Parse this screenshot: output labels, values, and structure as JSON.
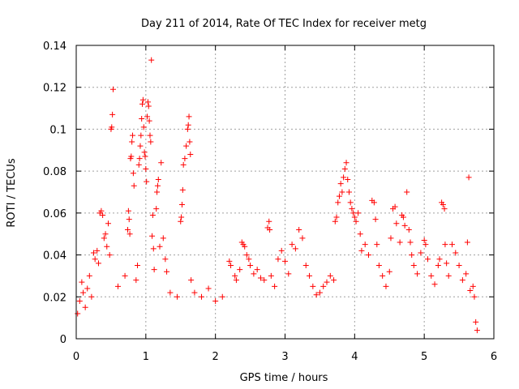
{
  "chart_data": {
    "type": "scatter",
    "title": "Day 211 of 2014, Rate Of TEC Index for receiver metg",
    "xlabel": "GPS time / hours",
    "ylabel": "ROTI / TECUs",
    "xlim": [
      0,
      6
    ],
    "ylim": [
      0,
      0.14
    ],
    "xticks": [
      0,
      1,
      2,
      3,
      4,
      5,
      6
    ],
    "xtick_labels": [
      "0",
      "1",
      "2",
      "3",
      "4",
      "5",
      "6"
    ],
    "yticks": [
      0,
      0.02,
      0.04,
      0.06,
      0.08,
      0.1,
      0.12,
      0.14
    ],
    "ytick_labels": [
      "0",
      "0.02",
      "0.04",
      "0.06",
      "0.08",
      "0.1",
      "0.12",
      "0.14"
    ],
    "grid": true,
    "marker": "plus",
    "color": "#ff0000",
    "series": [
      {
        "name": "ROTI",
        "points": [
          [
            0.02,
            0.012
          ],
          [
            0.05,
            0.018
          ],
          [
            0.08,
            0.027
          ],
          [
            0.1,
            0.022
          ],
          [
            0.13,
            0.015
          ],
          [
            0.16,
            0.024
          ],
          [
            0.19,
            0.03
          ],
          [
            0.22,
            0.02
          ],
          [
            0.25,
            0.041
          ],
          [
            0.27,
            0.038
          ],
          [
            0.3,
            0.042
          ],
          [
            0.32,
            0.036
          ],
          [
            0.34,
            0.06
          ],
          [
            0.36,
            0.061
          ],
          [
            0.38,
            0.059
          ],
          [
            0.4,
            0.048
          ],
          [
            0.42,
            0.05
          ],
          [
            0.44,
            0.044
          ],
          [
            0.46,
            0.055
          ],
          [
            0.48,
            0.04
          ],
          [
            0.5,
            0.1
          ],
          [
            0.51,
            0.101
          ],
          [
            0.52,
            0.107
          ],
          [
            0.53,
            0.119
          ],
          [
            0.6,
            0.025
          ],
          [
            0.7,
            0.03
          ],
          [
            0.74,
            0.052
          ],
          [
            0.75,
            0.061
          ],
          [
            0.76,
            0.057
          ],
          [
            0.77,
            0.05
          ],
          [
            0.78,
            0.086
          ],
          [
            0.79,
            0.087
          ],
          [
            0.8,
            0.094
          ],
          [
            0.81,
            0.097
          ],
          [
            0.82,
            0.079
          ],
          [
            0.83,
            0.073
          ],
          [
            0.86,
            0.028
          ],
          [
            0.88,
            0.035
          ],
          [
            0.9,
            0.083
          ],
          [
            0.91,
            0.086
          ],
          [
            0.92,
            0.092
          ],
          [
            0.93,
            0.097
          ],
          [
            0.94,
            0.105
          ],
          [
            0.95,
            0.112
          ],
          [
            0.96,
            0.114
          ],
          [
            0.97,
            0.101
          ],
          [
            0.98,
            0.089
          ],
          [
            0.99,
            0.087
          ],
          [
            1.0,
            0.081
          ],
          [
            1.01,
            0.075
          ],
          [
            1.02,
            0.106
          ],
          [
            1.03,
            0.113
          ],
          [
            1.04,
            0.111
          ],
          [
            1.05,
            0.104
          ],
          [
            1.06,
            0.097
          ],
          [
            1.07,
            0.094
          ],
          [
            1.08,
            0.133
          ],
          [
            1.09,
            0.049
          ],
          [
            1.1,
            0.059
          ],
          [
            1.11,
            0.043
          ],
          [
            1.12,
            0.033
          ],
          [
            1.15,
            0.062
          ],
          [
            1.16,
            0.07
          ],
          [
            1.17,
            0.073
          ],
          [
            1.18,
            0.076
          ],
          [
            1.2,
            0.044
          ],
          [
            1.22,
            0.084
          ],
          [
            1.25,
            0.048
          ],
          [
            1.28,
            0.038
          ],
          [
            1.3,
            0.032
          ],
          [
            1.35,
            0.022
          ],
          [
            1.45,
            0.02
          ],
          [
            1.5,
            0.056
          ],
          [
            1.51,
            0.058
          ],
          [
            1.52,
            0.064
          ],
          [
            1.53,
            0.071
          ],
          [
            1.54,
            0.083
          ],
          [
            1.56,
            0.086
          ],
          [
            1.58,
            0.092
          ],
          [
            1.6,
            0.1
          ],
          [
            1.61,
            0.102
          ],
          [
            1.62,
            0.106
          ],
          [
            1.63,
            0.094
          ],
          [
            1.64,
            0.088
          ],
          [
            1.65,
            0.028
          ],
          [
            1.7,
            0.022
          ],
          [
            1.8,
            0.02
          ],
          [
            1.9,
            0.024
          ],
          [
            2.0,
            0.018
          ],
          [
            2.1,
            0.02
          ],
          [
            2.2,
            0.037
          ],
          [
            2.22,
            0.035
          ],
          [
            2.28,
            0.03
          ],
          [
            2.3,
            0.028
          ],
          [
            2.35,
            0.033
          ],
          [
            2.38,
            0.046
          ],
          [
            2.4,
            0.045
          ],
          [
            2.42,
            0.044
          ],
          [
            2.45,
            0.04
          ],
          [
            2.48,
            0.038
          ],
          [
            2.5,
            0.035
          ],
          [
            2.55,
            0.031
          ],
          [
            2.6,
            0.033
          ],
          [
            2.65,
            0.029
          ],
          [
            2.7,
            0.028
          ],
          [
            2.75,
            0.053
          ],
          [
            2.77,
            0.056
          ],
          [
            2.78,
            0.052
          ],
          [
            2.8,
            0.03
          ],
          [
            2.85,
            0.025
          ],
          [
            2.9,
            0.038
          ],
          [
            2.95,
            0.042
          ],
          [
            3.0,
            0.037
          ],
          [
            3.05,
            0.031
          ],
          [
            3.1,
            0.045
          ],
          [
            3.15,
            0.043
          ],
          [
            3.2,
            0.052
          ],
          [
            3.25,
            0.048
          ],
          [
            3.3,
            0.035
          ],
          [
            3.35,
            0.03
          ],
          [
            3.4,
            0.025
          ],
          [
            3.45,
            0.021
          ],
          [
            3.5,
            0.022
          ],
          [
            3.55,
            0.025
          ],
          [
            3.6,
            0.027
          ],
          [
            3.65,
            0.03
          ],
          [
            3.7,
            0.028
          ],
          [
            3.72,
            0.056
          ],
          [
            3.74,
            0.058
          ],
          [
            3.76,
            0.065
          ],
          [
            3.78,
            0.068
          ],
          [
            3.8,
            0.074
          ],
          [
            3.82,
            0.07
          ],
          [
            3.84,
            0.077
          ],
          [
            3.86,
            0.081
          ],
          [
            3.88,
            0.084
          ],
          [
            3.9,
            0.076
          ],
          [
            3.92,
            0.07
          ],
          [
            3.94,
            0.065
          ],
          [
            3.96,
            0.062
          ],
          [
            3.98,
            0.06
          ],
          [
            4.0,
            0.058
          ],
          [
            4.02,
            0.056
          ],
          [
            4.05,
            0.06
          ],
          [
            4.08,
            0.05
          ],
          [
            4.1,
            0.042
          ],
          [
            4.15,
            0.045
          ],
          [
            4.2,
            0.04
          ],
          [
            4.25,
            0.066
          ],
          [
            4.28,
            0.065
          ],
          [
            4.3,
            0.057
          ],
          [
            4.32,
            0.045
          ],
          [
            4.35,
            0.035
          ],
          [
            4.4,
            0.03
          ],
          [
            4.45,
            0.025
          ],
          [
            4.5,
            0.032
          ],
          [
            4.52,
            0.048
          ],
          [
            4.55,
            0.062
          ],
          [
            4.58,
            0.063
          ],
          [
            4.6,
            0.055
          ],
          [
            4.65,
            0.046
          ],
          [
            4.68,
            0.059
          ],
          [
            4.7,
            0.058
          ],
          [
            4.72,
            0.054
          ],
          [
            4.75,
            0.07
          ],
          [
            4.78,
            0.052
          ],
          [
            4.8,
            0.046
          ],
          [
            4.82,
            0.04
          ],
          [
            4.85,
            0.035
          ],
          [
            4.9,
            0.031
          ],
          [
            4.95,
            0.041
          ],
          [
            5.0,
            0.047
          ],
          [
            5.02,
            0.045
          ],
          [
            5.05,
            0.038
          ],
          [
            5.1,
            0.03
          ],
          [
            5.15,
            0.026
          ],
          [
            5.2,
            0.035
          ],
          [
            5.22,
            0.038
          ],
          [
            5.25,
            0.065
          ],
          [
            5.27,
            0.064
          ],
          [
            5.29,
            0.062
          ],
          [
            5.3,
            0.045
          ],
          [
            5.32,
            0.036
          ],
          [
            5.35,
            0.03
          ],
          [
            5.4,
            0.045
          ],
          [
            5.45,
            0.041
          ],
          [
            5.5,
            0.035
          ],
          [
            5.55,
            0.028
          ],
          [
            5.6,
            0.031
          ],
          [
            5.62,
            0.046
          ],
          [
            5.64,
            0.077
          ],
          [
            5.66,
            0.023
          ],
          [
            5.7,
            0.025
          ],
          [
            5.72,
            0.02
          ],
          [
            5.74,
            0.008
          ],
          [
            5.76,
            0.004
          ]
        ]
      }
    ]
  }
}
